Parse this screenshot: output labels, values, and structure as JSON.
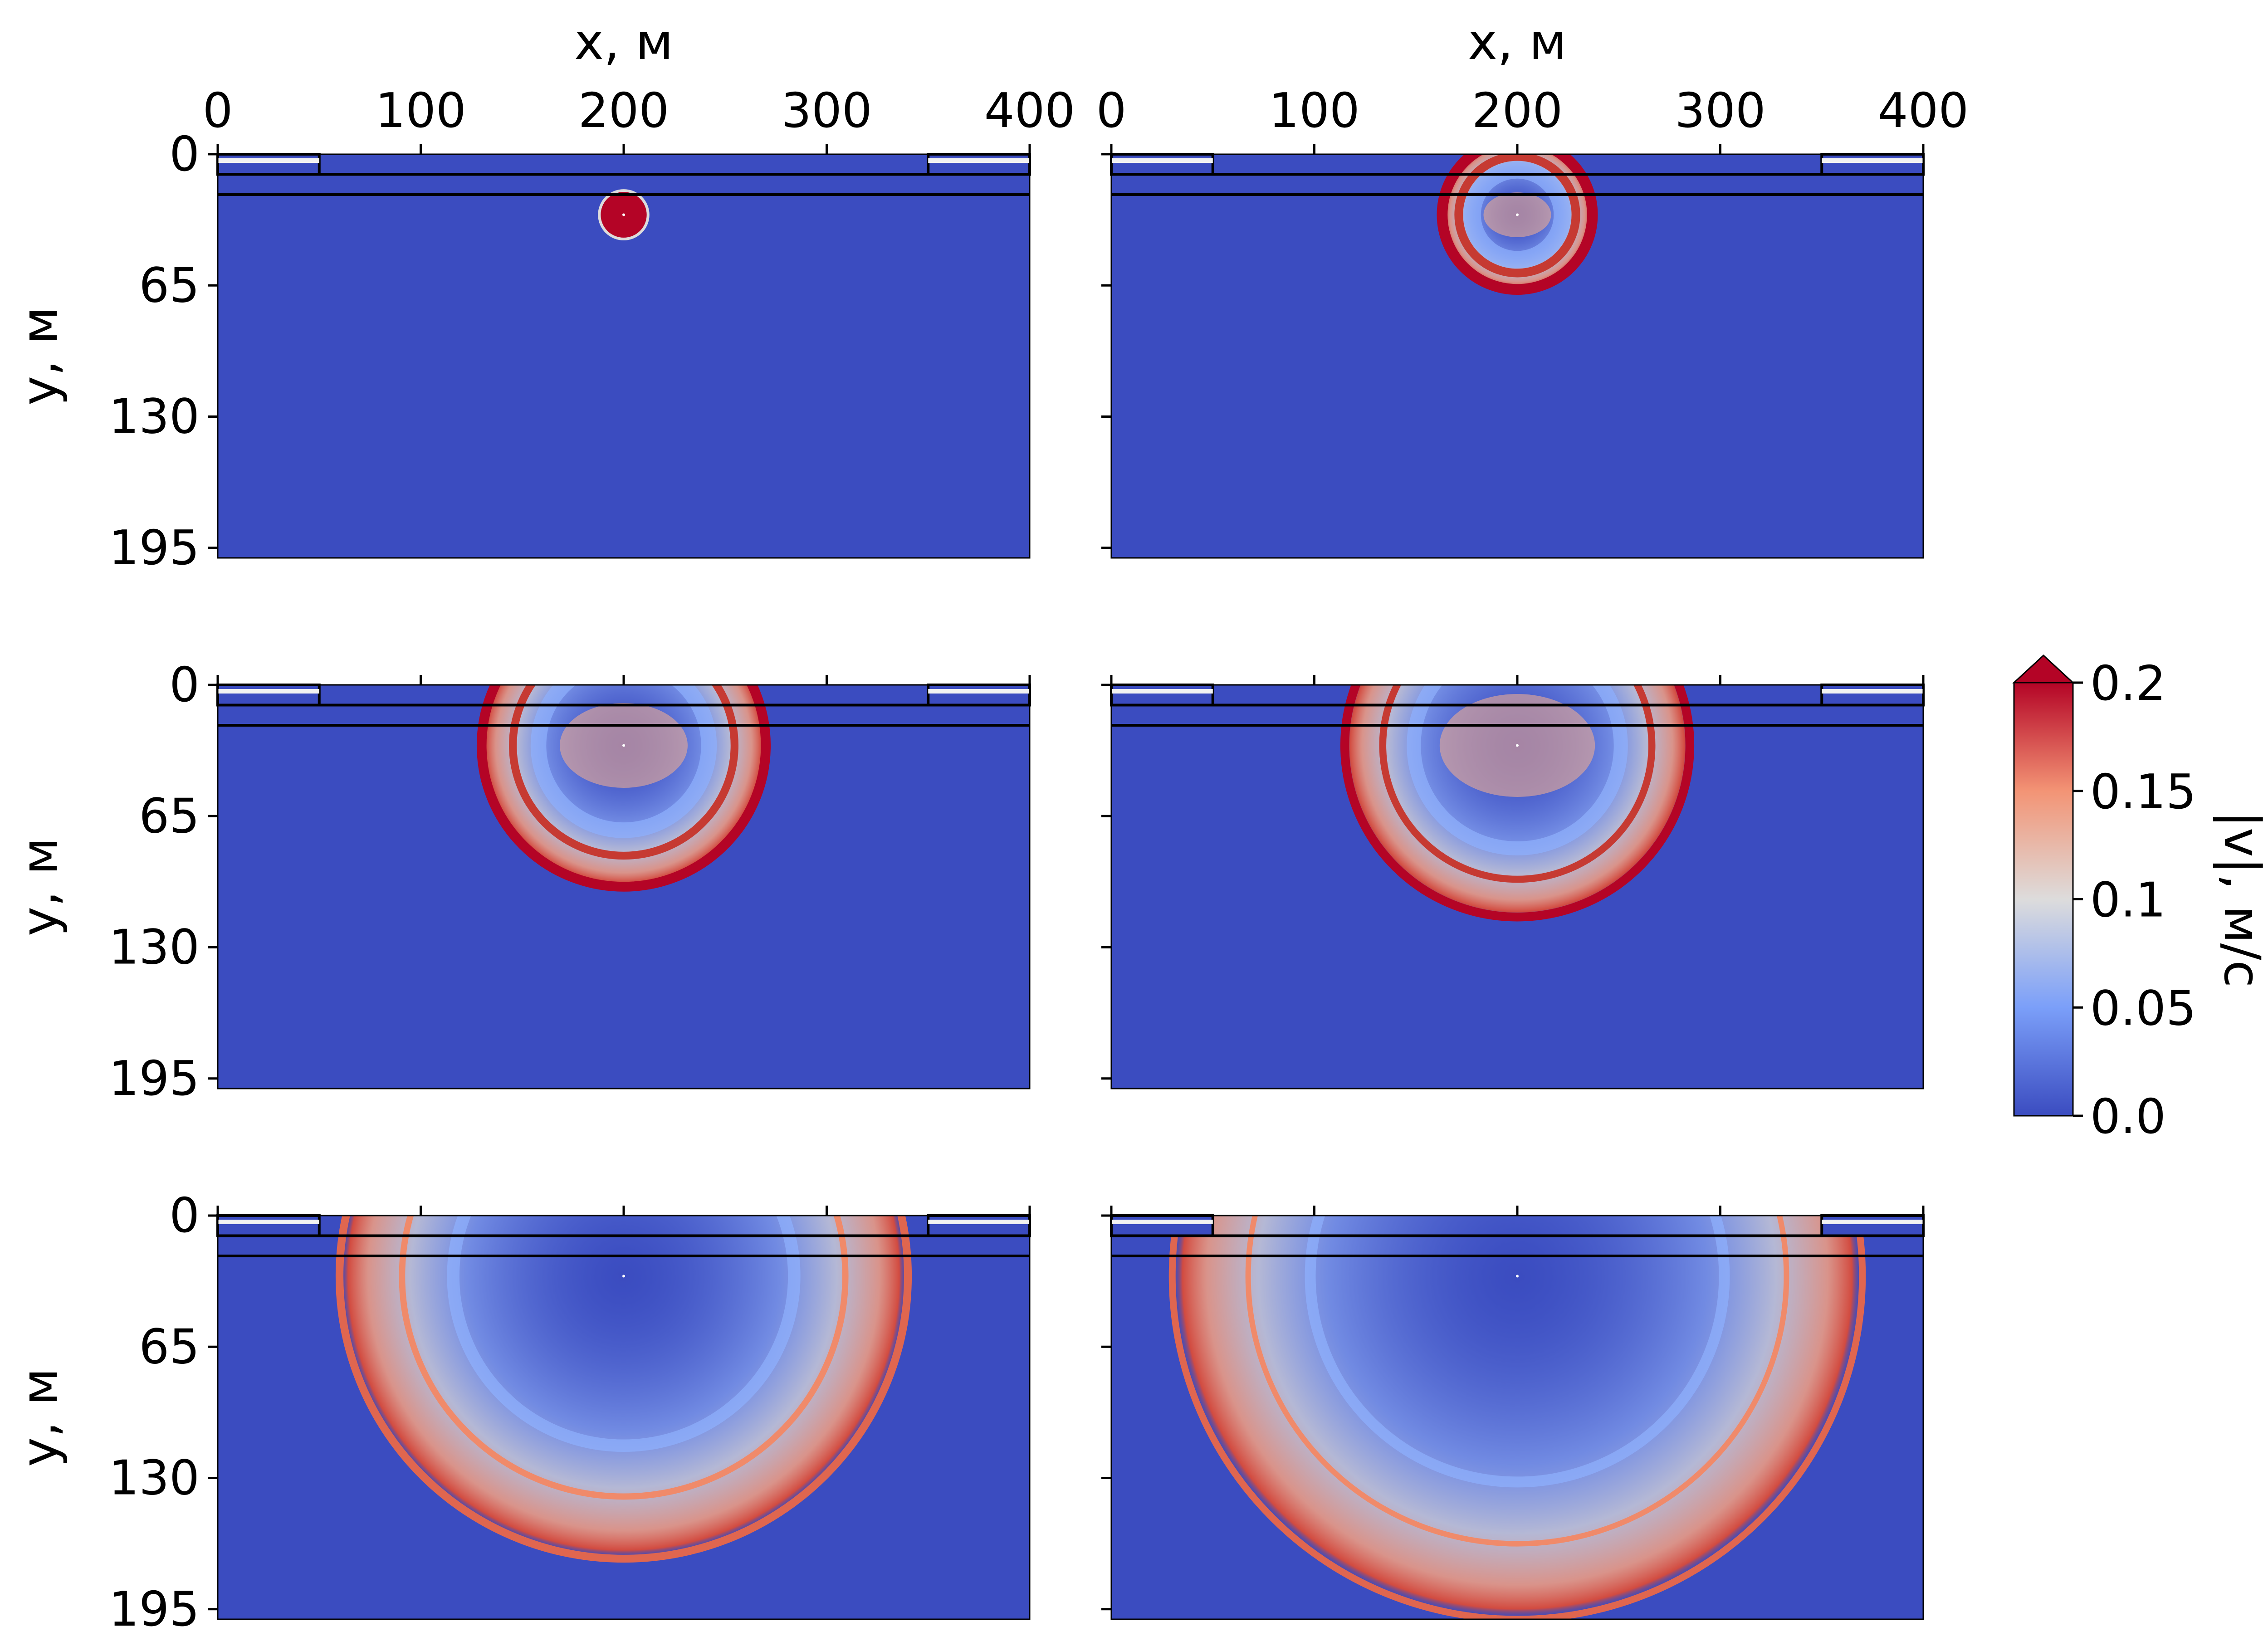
{
  "chart_data": {
    "type": "heatmap",
    "layout": {
      "rows": 3,
      "cols": 2
    },
    "xlabel": "x, м",
    "ylabel": "y, м",
    "xlim": [
      0,
      400
    ],
    "ylim": [
      200,
      0
    ],
    "xticks": [
      0,
      100,
      200,
      300,
      400
    ],
    "yticks": [
      0,
      65,
      130,
      195
    ],
    "colorbar": {
      "label": "|v|, м/с",
      "ticks": [
        "0.0",
        "0.05",
        "0.1",
        "0.15",
        "0.2"
      ],
      "min": 0.0,
      "max": 0.2,
      "extend": "max",
      "colormap": "coolwarm",
      "low_color": "#3b4cc0",
      "mid_color": "#dddcdc",
      "high_color": "#b40426"
    },
    "structure": {
      "layer_boundaries_y": [
        10,
        20
      ],
      "surface_blocks": [
        {
          "x0": 0,
          "x1": 50,
          "y0": 0,
          "y1": 10
        },
        {
          "x0": 350,
          "x1": 400,
          "y0": 0,
          "y1": 10
        }
      ]
    },
    "source": {
      "x": 200,
      "y": 30
    },
    "panels": [
      {
        "row": 0,
        "col": 0,
        "wavefront_radius": 12
      },
      {
        "row": 0,
        "col": 1,
        "wavefront_radius": 37
      },
      {
        "row": 1,
        "col": 0,
        "wavefront_radius": 70
      },
      {
        "row": 1,
        "col": 1,
        "wavefront_radius": 85
      },
      {
        "row": 2,
        "col": 0,
        "wavefront_radius": 140
      },
      {
        "row": 2,
        "col": 1,
        "wavefront_radius": 170
      }
    ]
  }
}
